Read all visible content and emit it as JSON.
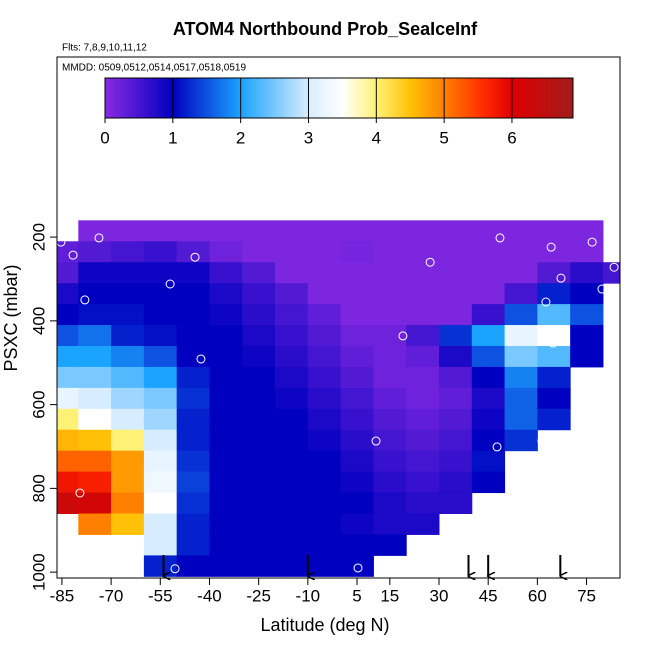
{
  "chart_data": {
    "type": "heatmap",
    "title": "ATOM4 Northbound Prob_SeaIceInf",
    "subtitle": "Flts: 7,8,9,10,11,12",
    "legend_title": "MMDD: 0509,0512,0514,0517,0518,0519",
    "x_label": "Latitude (deg N)",
    "y_label": "PSXC (mbar)",
    "xlim": [
      -86.5,
      85.2
    ],
    "xticks": [
      -85,
      -70,
      -55,
      -40,
      -25,
      -10,
      5,
      15,
      30,
      45,
      60,
      75
    ],
    "ylim": [
      1014,
      -230
    ],
    "yticks": [
      200,
      400,
      600,
      800,
      1000
    ],
    "colorbar_lim": [
      0,
      6.9
    ],
    "colorbar_ticks": [
      0,
      1,
      2,
      3,
      4,
      5,
      6
    ],
    "colorscale": [
      [
        0,
        "#8a2be2"
      ],
      [
        1,
        "#0000c0"
      ],
      [
        2,
        "#1aa3ff"
      ],
      [
        3,
        "#d8ecff"
      ],
      [
        3.5,
        "#ffffff"
      ],
      [
        4,
        "#fff176"
      ],
      [
        4.5,
        "#ffc107"
      ],
      [
        5,
        "#ff8000"
      ],
      [
        5.6,
        "#ff2a00"
      ],
      [
        6,
        "#e00000"
      ],
      [
        6.9,
        "#a01c1c"
      ]
    ],
    "lat_edges": [
      -90,
      -80,
      -70,
      -60,
      -50,
      -40,
      -30,
      -20,
      -10,
      0,
      10,
      20,
      30,
      40,
      50,
      60,
      70,
      80,
      90
    ],
    "pressure_edges": [
      160,
      210,
      260,
      310,
      360,
      410,
      460,
      510,
      560,
      610,
      660,
      710,
      760,
      810,
      860,
      910,
      960,
      1010
    ],
    "z": [
      [
        null,
        0.1,
        0.1,
        0.1,
        0.1,
        0.1,
        0.1,
        0.1,
        0.1,
        0.1,
        0.1,
        0.1,
        0.1,
        0.1,
        0.1,
        0.1,
        0.1,
        null
      ],
      [
        0.3,
        0.4,
        0.5,
        0.6,
        0.4,
        0.2,
        0.1,
        0.1,
        0.1,
        0.15,
        0.1,
        0.1,
        0.1,
        0.1,
        0.1,
        0.1,
        0.1,
        null
      ],
      [
        0.4,
        0.9,
        0.9,
        0.9,
        0.9,
        0.6,
        0.4,
        0.1,
        0.1,
        0.1,
        0.1,
        0.1,
        0.1,
        0.1,
        0.1,
        0.4,
        0.7,
        0.5
      ],
      [
        0.8,
        1.0,
        1.0,
        1.0,
        1.0,
        0.8,
        0.6,
        0.4,
        0.1,
        0.1,
        0.1,
        0.1,
        0.1,
        0.1,
        0.5,
        1.2,
        1.0,
        null
      ],
      [
        1.0,
        1.1,
        1.1,
        1.0,
        1.0,
        0.9,
        0.7,
        0.5,
        0.3,
        0.1,
        0.1,
        0.1,
        0.1,
        0.6,
        1.5,
        2.3,
        1.5,
        null
      ],
      [
        1.5,
        1.7,
        1.2,
        1.1,
        1.0,
        1.0,
        0.8,
        0.6,
        0.4,
        0.2,
        0.2,
        0.5,
        1.3,
        2.0,
        3.2,
        3.5,
        1.0,
        null
      ],
      [
        2.0,
        2.0,
        1.8,
        1.5,
        1.0,
        1.0,
        0.9,
        0.7,
        0.5,
        0.3,
        0.2,
        0.3,
        0.8,
        1.5,
        2.5,
        2.3,
        1.0,
        null
      ],
      [
        2.5,
        2.5,
        2.3,
        2.0,
        1.2,
        1.0,
        1.0,
        0.8,
        0.6,
        0.4,
        0.2,
        0.2,
        0.4,
        1.0,
        1.8,
        1.2,
        null,
        null
      ],
      [
        3.2,
        3.0,
        2.7,
        2.5,
        1.3,
        1.0,
        1.0,
        0.9,
        0.7,
        0.5,
        0.3,
        0.2,
        0.3,
        0.8,
        1.6,
        1.0,
        null,
        null
      ],
      [
        4.0,
        3.5,
        3.0,
        2.7,
        1.2,
        1.0,
        1.0,
        1.0,
        0.8,
        0.6,
        0.4,
        0.3,
        0.4,
        0.9,
        1.6,
        1.2,
        null,
        null
      ],
      [
        4.6,
        4.5,
        4.0,
        3.0,
        1.2,
        1.0,
        1.0,
        1.0,
        0.9,
        0.7,
        0.5,
        0.4,
        0.5,
        1.0,
        1.3,
        null,
        null,
        null
      ],
      [
        5.2,
        5.2,
        4.8,
        3.2,
        1.3,
        1.0,
        1.0,
        1.0,
        1.0,
        0.8,
        0.6,
        0.5,
        0.6,
        1.1,
        null,
        null,
        null,
        null
      ],
      [
        5.8,
        5.7,
        4.8,
        3.3,
        1.4,
        1.0,
        1.0,
        1.0,
        1.0,
        0.9,
        0.7,
        0.6,
        0.7,
        1.0,
        null,
        null,
        null,
        null
      ],
      [
        6.3,
        6.2,
        5.0,
        3.5,
        1.3,
        1.0,
        1.0,
        1.0,
        1.0,
        1.0,
        0.8,
        0.7,
        0.7,
        null,
        null,
        null,
        null,
        null
      ],
      [
        null,
        5.0,
        4.5,
        3.0,
        1.2,
        1.0,
        1.0,
        1.0,
        1.0,
        0.9,
        0.8,
        0.8,
        null,
        null,
        null,
        null,
        null,
        null
      ],
      [
        null,
        null,
        null,
        3.0,
        1.2,
        1.0,
        1.0,
        1.0,
        1.0,
        1.0,
        1.0,
        null,
        null,
        null,
        null,
        null,
        null,
        null
      ],
      [
        null,
        null,
        null,
        1.2,
        1.0,
        1.0,
        1.0,
        1.0,
        1.0,
        1.0,
        null,
        null,
        null,
        null,
        null,
        null,
        null,
        null
      ]
    ],
    "points": {
      "color": "#ffffff",
      "x": [
        -85.3,
        -73.7,
        -81.6,
        -44.4,
        -52,
        -78,
        -42.6,
        27.3,
        48.6,
        64.2,
        76.7,
        67.2,
        83.4,
        79.7,
        62.6,
        19,
        64.8,
        10.8,
        47.7,
        61.4,
        -79.5,
        -50.5,
        5.3
      ],
      "y": [
        212,
        202,
        243,
        248,
        312,
        350,
        491,
        260,
        202,
        224,
        212,
        298,
        272,
        324,
        355,
        436,
        453,
        687,
        701,
        687,
        811,
        992,
        990
      ]
    },
    "arrows_x": [
      -54,
      -10,
      39,
      45,
      67
    ]
  }
}
